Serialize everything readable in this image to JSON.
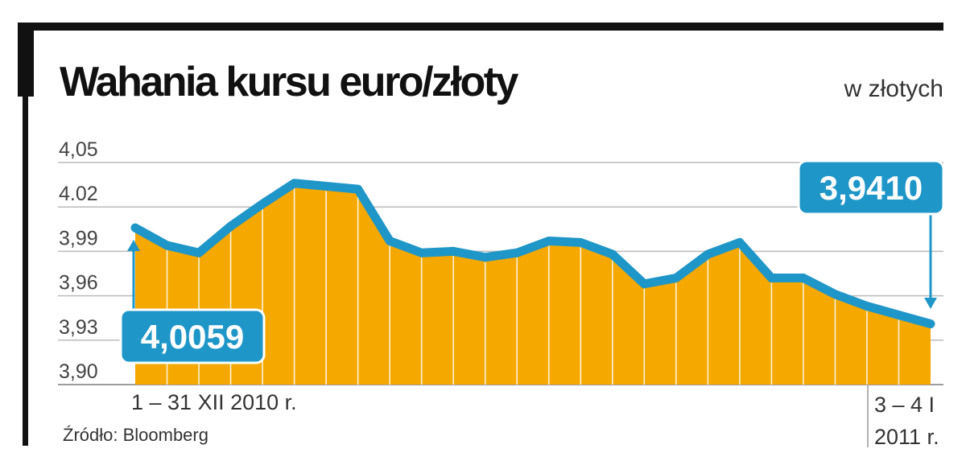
{
  "header": {
    "title": "Wahania kursu euro/złoty",
    "unit": "w złotych"
  },
  "footer": {
    "source": "Źródło: Bloomberg"
  },
  "chart_data": {
    "type": "area",
    "title": "Wahania kursu euro/złoty",
    "ylabel": "w złotych",
    "ylim": [
      3.9,
      4.05
    ],
    "yticks": [
      "4,05",
      "4.02",
      "3,99",
      "3,96",
      "3,93",
      "3,90"
    ],
    "ytick_values": [
      4.05,
      4.02,
      3.99,
      3.96,
      3.93,
      3.9
    ],
    "x_range_labels": {
      "start": "1 – 31 XII 2010 r.",
      "end_line1": "3 – 4 I",
      "end_line2": "2011 r."
    },
    "values": [
      4.0059,
      3.994,
      3.989,
      4.007,
      4.022,
      4.036,
      4.034,
      4.032,
      3.997,
      3.989,
      3.99,
      3.986,
      3.989,
      3.997,
      3.996,
      3.988,
      3.968,
      3.972,
      3.988,
      3.996,
      3.972,
      3.972,
      3.961,
      3.953,
      3.947,
      3.941
    ],
    "annotations": [
      {
        "label": "4,0059",
        "value": 4.0059,
        "point_index": 0
      },
      {
        "label": "3,9410",
        "value": 3.941,
        "point_index": 25
      }
    ],
    "grid": true,
    "colors": {
      "fill": "#F5A800",
      "line": "#1E96C8",
      "grid": "#BBBBBB",
      "label_bg": "#1E96C8",
      "label_text": "#FFFFFF"
    }
  }
}
